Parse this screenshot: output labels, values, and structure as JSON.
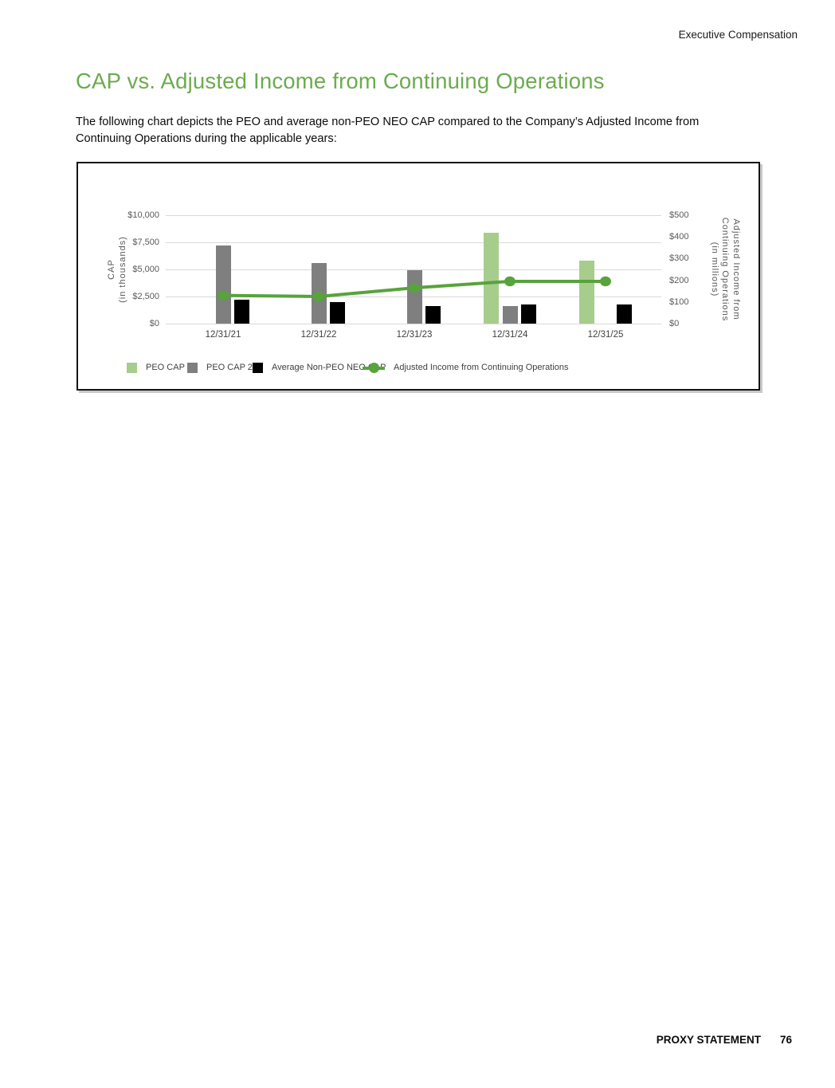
{
  "page": {
    "header": "Executive Compensation",
    "title": "CAP vs. Adjusted Income from Continuing Operations",
    "intro_line1": "The following chart depicts the PEO and average non-PEO NEO CAP compared to the Company’s Adjusted Income from",
    "intro_line2": "Continuing Operations during the applicable years:",
    "footer_label": "PROXY STATEMENT",
    "footer_page": "76"
  },
  "colors": {
    "heading_green": "#6cab4e",
    "peo_cap_1_green": "#a7cd8d",
    "peo_cap_2_gray": "#7f7f7f",
    "avg_neo_black": "#000000",
    "income_line_green": "#57a33c",
    "gridline_gray": "#d9d9d9",
    "axis_text_gray": "#595959"
  },
  "chart_data": {
    "type": "bar+line",
    "categories": [
      "12/31/21",
      "12/31/22",
      "12/31/23",
      "12/31/24",
      "12/31/25"
    ],
    "bar_series": [
      {
        "name": "PEO CAP 1",
        "color": "#a7cd8d",
        "axis": "left",
        "values": [
          null,
          null,
          null,
          8350,
          5800
        ]
      },
      {
        "name": "PEO CAP 2",
        "color": "#7f7f7f",
        "axis": "left",
        "values": [
          7200,
          5600,
          4950,
          1600,
          null
        ]
      },
      {
        "name": "Average Non-PEO NEO CAP",
        "color": "#000000",
        "axis": "left",
        "values": [
          2200,
          2000,
          1600,
          1800,
          1800
        ]
      }
    ],
    "line_series": {
      "name": "Adjusted Income from Continuing Operations",
      "color": "#57a33c",
      "axis": "right",
      "values": [
        130,
        125,
        165,
        195,
        195
      ]
    },
    "left_axis": {
      "title_lines": [
        "CAP",
        "(in thousands)"
      ],
      "ticks": [
        "$0",
        "$2,500",
        "$5,000",
        "$7,500",
        "$10,000"
      ],
      "min": 0,
      "max": 10000
    },
    "right_axis": {
      "title_lines": [
        "Adjusted Income from",
        "Continuing Operations",
        "(in millions)"
      ],
      "ticks": [
        "$0",
        "$100",
        "$200",
        "$300",
        "$400",
        "$500"
      ],
      "min": 0,
      "max": 500
    },
    "grid": "horizontal",
    "legend_position": "bottom"
  }
}
